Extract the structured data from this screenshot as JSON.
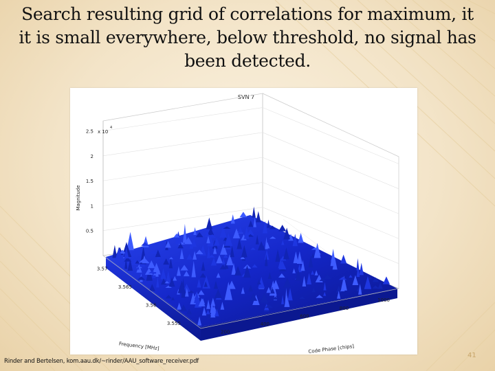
{
  "slide": {
    "title": "Search resulting grid of correlations for maximum, it it is small everywhere, below threshold, no signal has been detected.",
    "citation": "Rinder and Bertelsen, kom.aau.dk/~rinder/AAU_software_receiver.pdf",
    "slide_number": "41"
  },
  "chart_data": {
    "type": "surface",
    "title": "SVN 7",
    "zlabel": "Magnitude",
    "zlabel_multiplier": "x 10",
    "zlabel_exponent": "4",
    "ylabel": "Frequency [MHz]",
    "xlabel": "Code Phase [chips]",
    "z_ticks": [
      "0.5",
      "1",
      "1.5",
      "2",
      "2.5"
    ],
    "y_ticks": [
      "3.57",
      "3.565",
      "3.56",
      "3.555"
    ],
    "x_ticks": [
      "200",
      "400",
      "600",
      "800",
      "1000"
    ],
    "zlim": [
      0,
      2.7
    ],
    "surface_max": 0.5,
    "colors": {
      "surface_dark": "#0c1a9a",
      "surface_light": "#3a56ff",
      "grid": "#d8d8d8"
    }
  }
}
